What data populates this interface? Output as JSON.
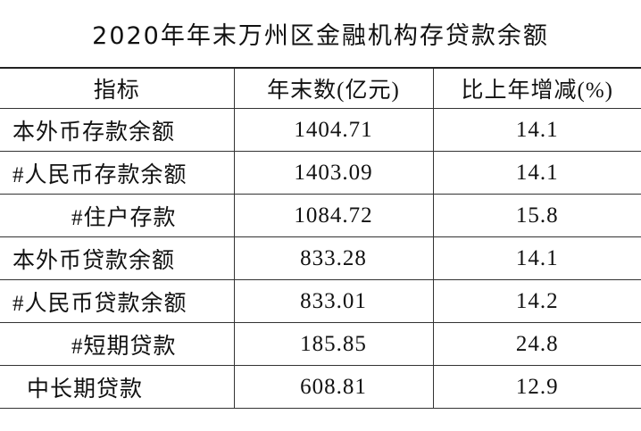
{
  "title": "2020年年末万州区金融机构存贷款余额",
  "table": {
    "header": [
      "指标",
      "年末数(亿元)",
      "比上年增减(%)"
    ],
    "rows": [
      [
        "本外币存款余额",
        "1404.71",
        "14.1"
      ],
      [
        "#人民币存款余额",
        "1403.09",
        "14.1"
      ],
      [
        "#住户存款",
        "1084.72",
        "15.8"
      ],
      [
        "本外币贷款余额",
        "833.28",
        "14.1"
      ],
      [
        "#人民币贷款余额",
        "833.01",
        "14.2"
      ],
      [
        "#短期贷款",
        "185.85",
        "24.8"
      ],
      [
        "中长期贷款",
        "608.81",
        "12.9"
      ]
    ]
  }
}
